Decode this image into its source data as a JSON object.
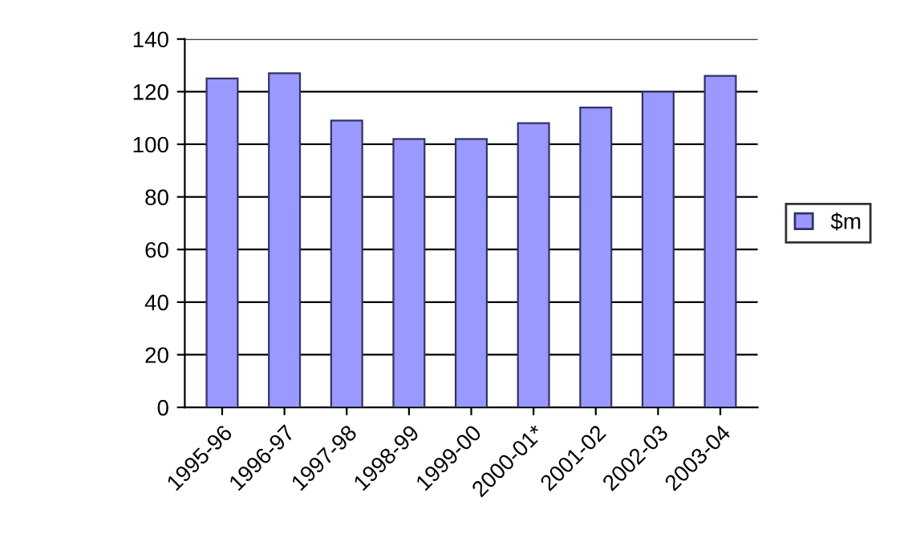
{
  "chart_data": {
    "type": "bar",
    "categories": [
      "1995-96",
      "1996-97",
      "1997-98",
      "1998-99",
      "1999-00",
      "2000-01*",
      "2001-02",
      "2002-03",
      "2003-04"
    ],
    "series": [
      {
        "name": "$m",
        "color": "#9999ff",
        "values": [
          125,
          127,
          109,
          102,
          102,
          108,
          114,
          120,
          126
        ]
      }
    ],
    "ylim": [
      0,
      140
    ],
    "yticks": [
      0,
      20,
      40,
      60,
      80,
      100,
      120,
      140
    ],
    "grid": "y",
    "legend": "right"
  }
}
